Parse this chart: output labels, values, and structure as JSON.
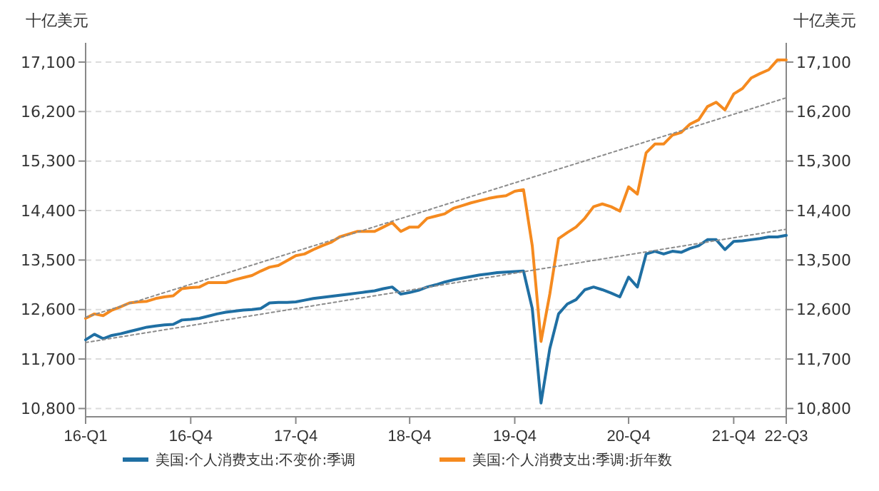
{
  "chart_data": {
    "type": "line",
    "ylabel": "十亿美元",
    "y2label": "十亿美元",
    "categories": [
      "16-Q1",
      null,
      null,
      null,
      null,
      null,
      null,
      null,
      null,
      null,
      null,
      null,
      "16-Q4",
      null,
      null,
      null,
      null,
      null,
      null,
      null,
      null,
      null,
      null,
      null,
      "17-Q4",
      null,
      null,
      null,
      null,
      null,
      null,
      null,
      null,
      null,
      null,
      null,
      null,
      "18-Q4",
      null,
      null,
      null,
      null,
      null,
      null,
      null,
      null,
      null,
      null,
      null,
      "19-Q4",
      null,
      null,
      null,
      null,
      null,
      null,
      null,
      null,
      null,
      null,
      null,
      null,
      "20-Q4",
      null,
      null,
      null,
      null,
      null,
      null,
      null,
      null,
      null,
      null,
      null,
      "21-Q4",
      null,
      null,
      null,
      null,
      null,
      "22-Q3"
    ],
    "ylim": [
      10650,
      17450
    ],
    "yticks": [
      {
        "value": 10800,
        "label": "10,800"
      },
      {
        "value": 11700,
        "label": "11,700"
      },
      {
        "value": 12600,
        "label": "12,600"
      },
      {
        "value": 13500,
        "label": "13,500"
      },
      {
        "value": 14400,
        "label": "14,400"
      },
      {
        "value": 15300,
        "label": "15,300"
      },
      {
        "value": 16200,
        "label": "16,200"
      },
      {
        "value": 17100,
        "label": "17,100"
      }
    ],
    "y2lim": [
      10650,
      17450
    ],
    "y2ticks": [
      {
        "value": 10800,
        "label": "10,800"
      },
      {
        "value": 11700,
        "label": "11,700"
      },
      {
        "value": 12600,
        "label": "12,600"
      },
      {
        "value": 13500,
        "label": "13,500"
      },
      {
        "value": 14400,
        "label": "14,400"
      },
      {
        "value": 15300,
        "label": "15,300"
      },
      {
        "value": 16200,
        "label": "16,200"
      },
      {
        "value": 17100,
        "label": "17,100"
      }
    ],
    "grid": "y",
    "legend": "bottom",
    "marker": "none",
    "series": [
      {
        "name": "美国:个人消费支出:不变价:季调",
        "color": "#1f6fa3",
        "line_style": "solid",
        "values": [
          12050,
          12150,
          12070,
          12130,
          12160,
          12200,
          12240,
          12280,
          12300,
          12320,
          12330,
          12410,
          12420,
          12440,
          12480,
          12520,
          12550,
          12570,
          12590,
          12600,
          12620,
          12720,
          12730,
          12730,
          12740,
          12770,
          12800,
          12820,
          12840,
          12860,
          12880,
          12900,
          12920,
          12940,
          12980,
          13010,
          12880,
          12910,
          12950,
          13010,
          13050,
          13100,
          13140,
          13170,
          13200,
          13230,
          13250,
          13270,
          13280,
          13290,
          13300,
          12620,
          10900,
          11890,
          12520,
          12700,
          12780,
          12960,
          13010,
          12960,
          12900,
          12830,
          13190,
          13010,
          13610,
          13660,
          13610,
          13660,
          13640,
          13710,
          13760,
          13870,
          13870,
          13690,
          13840,
          13850,
          13870,
          13890,
          13920,
          13920,
          13950
        ]
      },
      {
        "name": "美国:个人消费支出:季调:折年数",
        "color": "#f58a1f",
        "line_style": "solid",
        "values": [
          12440,
          12520,
          12490,
          12590,
          12650,
          12720,
          12740,
          12750,
          12800,
          12830,
          12850,
          12980,
          13000,
          13010,
          13090,
          13090,
          13090,
          13140,
          13180,
          13220,
          13300,
          13370,
          13400,
          13490,
          13580,
          13610,
          13690,
          13760,
          13820,
          13920,
          13970,
          14020,
          14020,
          14020,
          14100,
          14180,
          14020,
          14100,
          14100,
          14260,
          14300,
          14340,
          14440,
          14490,
          14540,
          14580,
          14620,
          14650,
          14670,
          14750,
          14780,
          13760,
          12020,
          12880,
          13890,
          14000,
          14100,
          14260,
          14470,
          14520,
          14470,
          14390,
          14830,
          14700,
          15450,
          15610,
          15610,
          15770,
          15820,
          15970,
          16050,
          16290,
          16370,
          16230,
          16520,
          16620,
          16810,
          16890,
          16960,
          17140,
          17140
        ]
      },
      {
        "color": "#8c8c8c",
        "line_style": "dotted",
        "values": [
          12000,
          null,
          null,
          null,
          null,
          null,
          null,
          null,
          null,
          null,
          null,
          null,
          null,
          null,
          null,
          null,
          null,
          null,
          null,
          null,
          null,
          null,
          null,
          null,
          null,
          null,
          null,
          null,
          null,
          null,
          null,
          null,
          null,
          null,
          null,
          null,
          null,
          null,
          null,
          null,
          null,
          null,
          null,
          null,
          null,
          null,
          null,
          null,
          null,
          null,
          null,
          null,
          null,
          null,
          null,
          null,
          null,
          null,
          null,
          null,
          null,
          null,
          null,
          null,
          null,
          null,
          null,
          null,
          null,
          null,
          null,
          null,
          null,
          null,
          null,
          null,
          null,
          null,
          null,
          null,
          14060
        ]
      },
      {
        "color": "#8c8c8c",
        "line_style": "dotted",
        "values": [
          12460,
          null,
          null,
          null,
          null,
          null,
          null,
          null,
          null,
          null,
          null,
          null,
          null,
          null,
          null,
          null,
          null,
          null,
          null,
          null,
          null,
          null,
          null,
          null,
          null,
          null,
          null,
          null,
          null,
          null,
          null,
          null,
          null,
          null,
          null,
          null,
          null,
          null,
          null,
          null,
          null,
          null,
          null,
          null,
          null,
          null,
          null,
          null,
          null,
          null,
          null,
          null,
          null,
          null,
          null,
          null,
          null,
          null,
          null,
          null,
          null,
          null,
          null,
          null,
          null,
          null,
          null,
          null,
          null,
          null,
          null,
          null,
          null,
          null,
          null,
          null,
          null,
          null,
          null,
          null,
          16450
        ]
      }
    ]
  }
}
